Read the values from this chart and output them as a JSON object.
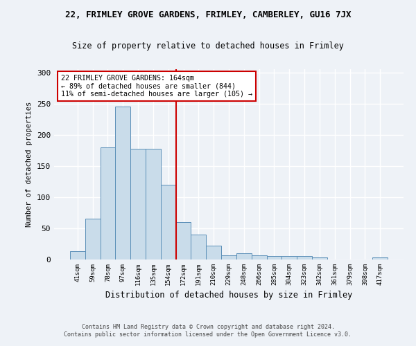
{
  "title_top": "22, FRIMLEY GROVE GARDENS, FRIMLEY, CAMBERLEY, GU16 7JX",
  "title_sub": "Size of property relative to detached houses in Frimley",
  "xlabel": "Distribution of detached houses by size in Frimley",
  "ylabel": "Number of detached properties",
  "bar_labels": [
    "41sqm",
    "59sqm",
    "78sqm",
    "97sqm",
    "116sqm",
    "135sqm",
    "154sqm",
    "172sqm",
    "191sqm",
    "210sqm",
    "229sqm",
    "248sqm",
    "266sqm",
    "285sqm",
    "304sqm",
    "323sqm",
    "342sqm",
    "361sqm",
    "379sqm",
    "398sqm",
    "417sqm"
  ],
  "bar_heights": [
    13,
    65,
    180,
    245,
    178,
    178,
    120,
    60,
    40,
    22,
    7,
    10,
    7,
    5,
    5,
    5,
    3,
    0,
    0,
    0,
    3
  ],
  "bar_color": "#c9dcea",
  "bar_edge_color": "#5b8fb8",
  "vline_color": "#cc0000",
  "vline_x_index": 7,
  "annotation_text": "22 FRIMLEY GROVE GARDENS: 164sqm\n← 89% of detached houses are smaller (844)\n11% of semi-detached houses are larger (105) →",
  "annotation_box_color": "#ffffff",
  "annotation_box_edge": "#cc0000",
  "ylim": [
    0,
    305
  ],
  "yticks": [
    0,
    50,
    100,
    150,
    200,
    250,
    300
  ],
  "footer_line1": "Contains HM Land Registry data © Crown copyright and database right 2024.",
  "footer_line2": "Contains public sector information licensed under the Open Government Licence v3.0.",
  "bg_color": "#eef2f7",
  "grid_color": "#ffffff",
  "fig_width": 6.0,
  "fig_height": 5.0,
  "dpi": 100
}
